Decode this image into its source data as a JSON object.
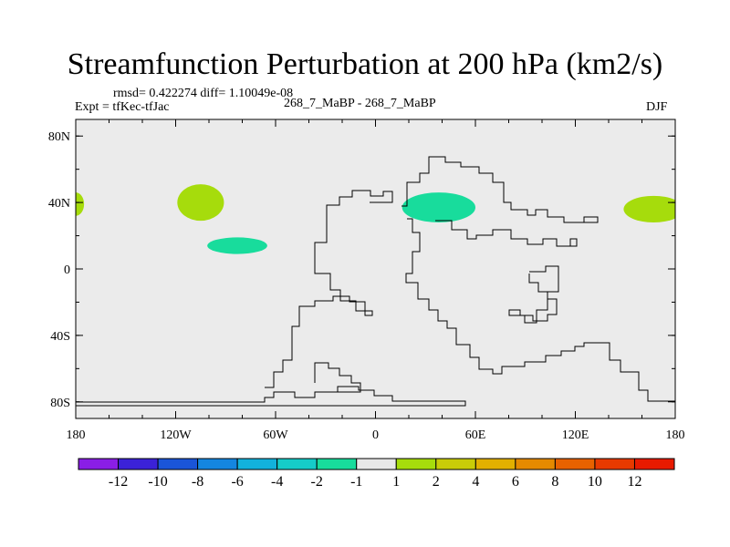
{
  "chart_data": {
    "type": "heatmap",
    "title": "Streamfunction Perturbation at 200 hPa (km2/s)",
    "stats_line": "rmsd= 0.422274 diff= 1.10049e-08",
    "experiment": "Expt = tfKec-tfJac",
    "subtitle_center": "268_7_MaBP - 268_7_MaBP",
    "season": "DJF",
    "xlim": [
      -180,
      180
    ],
    "ylim": [
      -90,
      90
    ],
    "x_ticks": [
      {
        "value": -180,
        "label": "180"
      },
      {
        "value": -120,
        "label": "120W"
      },
      {
        "value": -60,
        "label": "60W"
      },
      {
        "value": 0,
        "label": "0"
      },
      {
        "value": 60,
        "label": "60E"
      },
      {
        "value": 120,
        "label": "120E"
      },
      {
        "value": 180,
        "label": "180"
      }
    ],
    "y_ticks": [
      {
        "value": 80,
        "label": "80N"
      },
      {
        "value": 40,
        "label": "40N"
      },
      {
        "value": 0,
        "label": "0"
      },
      {
        "value": -40,
        "label": "40S"
      },
      {
        "value": -80,
        "label": "80S"
      }
    ],
    "colorbar": {
      "labels": [
        "-12",
        "-10",
        "-8",
        "-6",
        "-4",
        "-2",
        "-1",
        "1",
        "2",
        "4",
        "6",
        "8",
        "10",
        "12"
      ],
      "colors": [
        "#8a1ee6",
        "#3b22d8",
        "#1a55d9",
        "#1486e0",
        "#12b2dc",
        "#15ccc8",
        "#18dc9c",
        "#e8e8e8",
        "#a6dc0c",
        "#c9cc08",
        "#e2b000",
        "#e58a00",
        "#e86200",
        "#e83a00",
        "#e81a00"
      ]
    },
    "blobs": [
      {
        "lon": -180,
        "lat": 39,
        "rlon": 5,
        "rlat": 7,
        "color": "#a6dc0c"
      },
      {
        "lon": -105,
        "lat": 40,
        "rlon": 14,
        "rlat": 11,
        "color": "#a6dc0c"
      },
      {
        "lon": -83,
        "lat": 14,
        "rlon": 18,
        "rlat": 5,
        "color": "#18dc9c"
      },
      {
        "lon": 38,
        "lat": 37,
        "rlon": 22,
        "rlat": 9,
        "color": "#18dc9c"
      },
      {
        "lon": 167,
        "lat": 36,
        "rlon": 18,
        "rlat": 8,
        "color": "#a6dc0c"
      }
    ]
  }
}
